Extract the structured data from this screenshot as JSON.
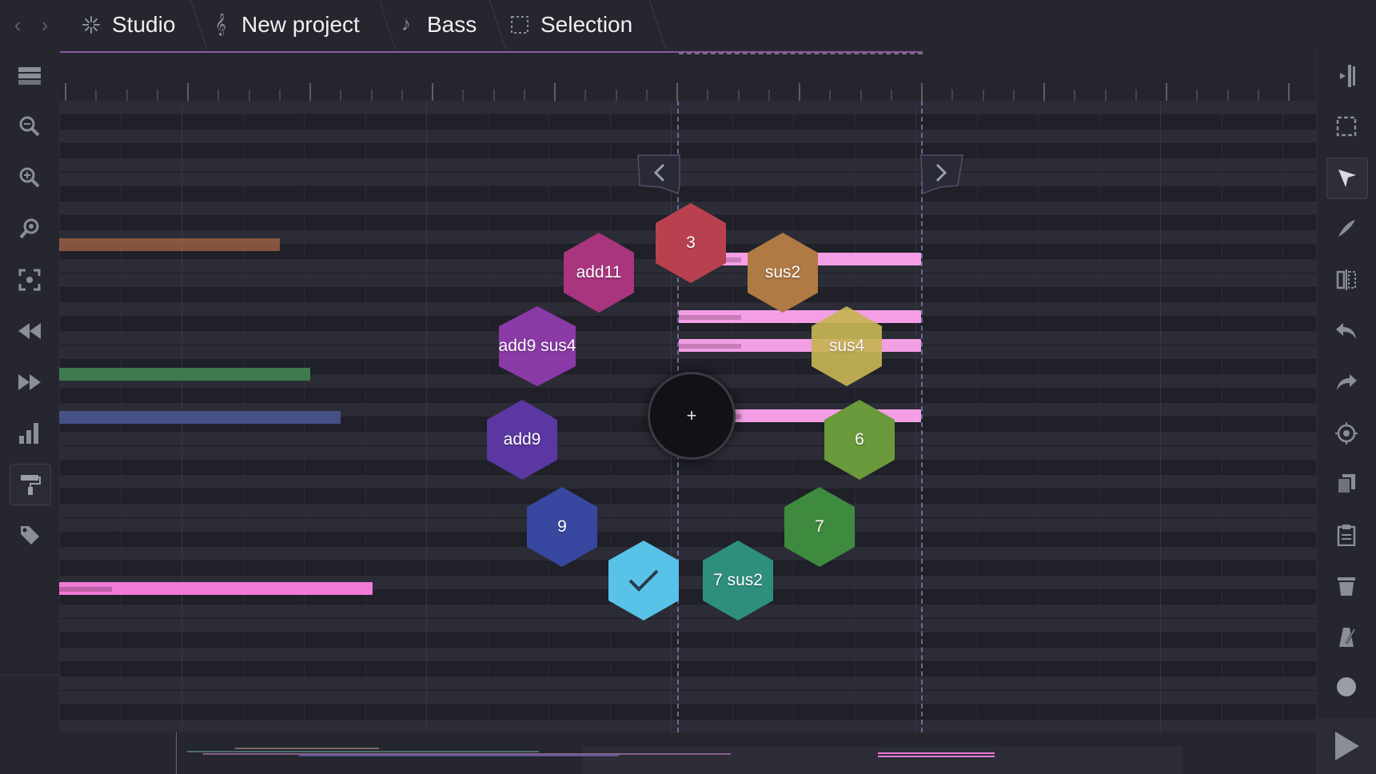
{
  "topbar": {
    "back_label": "‹",
    "forward_label": "›",
    "tabs": [
      {
        "label": "Studio",
        "icon": "sparkle-icon"
      },
      {
        "label": "New project",
        "icon": "treble-clef-icon"
      },
      {
        "label": "Bass",
        "icon": "music-note-icon"
      },
      {
        "label": "Selection",
        "icon": "selection-icon"
      }
    ]
  },
  "left_toolbar": [
    "tracks-icon",
    "zoom-out-icon",
    "zoom-in-icon",
    "zoom-fit-icon",
    "focus-icon",
    "rewind-icon",
    "fast-forward-icon",
    "velocity-bars-icon",
    "paint-roller-icon",
    "tag-icon"
  ],
  "right_toolbar": [
    "split-view-icon",
    "marquee-select-icon",
    "pointer-icon",
    "pencil-icon",
    "mirror-icon",
    "undo-icon",
    "redo-icon",
    "quantize-icon",
    "duplicate-icon",
    "paste-icon",
    "delete-icon",
    "metronome-icon",
    "record-icon"
  ],
  "chord_wheel": {
    "center_label": "+",
    "confirm_icon": "checkmark-icon",
    "chords": [
      {
        "label": "3",
        "color": "#b9414f"
      },
      {
        "label": "sus2",
        "color": "#b07a45"
      },
      {
        "label": "sus4",
        "color": "#c6b553"
      },
      {
        "label": "6",
        "color": "#6a9a3c"
      },
      {
        "label": "7",
        "color": "#3e8a3e"
      },
      {
        "label": "7 sus2",
        "color": "#2f8f7e"
      },
      {
        "label": "9",
        "color": "#3848a0"
      },
      {
        "label": "add9",
        "color": "#5b37a1"
      },
      {
        "label": "add9 sus4",
        "color": "#8a3aa6"
      },
      {
        "label": "add11",
        "color": "#a9357f"
      }
    ],
    "confirm_color": "#58c2e8"
  },
  "colors": {
    "accent": "#f49ee6",
    "note_pink": "#f07ad7",
    "note_orange": "#b06a48",
    "note_green": "#3f7a4e",
    "note_blue": "#4c5a95",
    "selection_line": "#6d6aa0"
  }
}
